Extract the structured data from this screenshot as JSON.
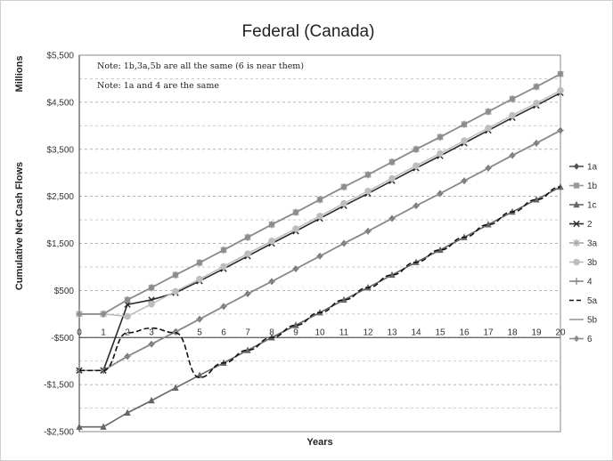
{
  "chart_data": {
    "type": "line",
    "title": "Federal (Canada)",
    "xlabel": "Years",
    "ylabel": "Cumulative Net Cash Flows",
    "units_label": "Millions",
    "notes": [
      "Note: 1b,3a,5b are all the same (6 is near them)",
      "Note: 1a and 4 are the same"
    ],
    "x": [
      0,
      1,
      2,
      3,
      4,
      5,
      6,
      7,
      8,
      9,
      10,
      11,
      12,
      13,
      14,
      15,
      16,
      17,
      18,
      19,
      20
    ],
    "ylim": [
      -2500,
      5500
    ],
    "yticks": [
      -2500,
      -1500,
      -500,
      500,
      1500,
      2500,
      3500,
      4500,
      5500
    ],
    "ytick_labels": [
      "-$2,500",
      "-$1,500",
      "-$500",
      "$500",
      "$1,500",
      "$2,500",
      "$3,500",
      "$4,500",
      "$5,500"
    ],
    "xtick_labels": [
      "0",
      "1",
      "2",
      "3",
      "4",
      "5",
      "6",
      "7",
      "8",
      "9",
      "10",
      "11",
      "12",
      "13",
      "14",
      "15",
      "16",
      "17",
      "18",
      "19",
      "20"
    ],
    "grid": true,
    "legend_position": "right",
    "series": [
      {
        "name": "1a",
        "color": "#555555",
        "marker": "diamond",
        "dash": "solid",
        "values": [
          -1200,
          -1200,
          -900,
          -640,
          -380,
          -110,
          160,
          430,
          690,
          960,
          1230,
          1500,
          1760,
          2030,
          2300,
          2560,
          2830,
          3100,
          3370,
          3630,
          3900
        ]
      },
      {
        "name": "1b",
        "color": "#9a9a9a",
        "marker": "square",
        "dash": "solid",
        "values": [
          0,
          0,
          300,
          560,
          830,
          1090,
          1360,
          1630,
          1900,
          2160,
          2430,
          2700,
          2960,
          3230,
          3500,
          3760,
          4030,
          4300,
          4570,
          4830,
          5100
        ]
      },
      {
        "name": "1c",
        "color": "#666666",
        "marker": "triangle",
        "dash": "solid",
        "values": [
          -2400,
          -2400,
          -2100,
          -1840,
          -1570,
          -1300,
          -1040,
          -770,
          -500,
          -240,
          30,
          300,
          560,
          830,
          1100,
          1360,
          1630,
          1900,
          2170,
          2430,
          2700
        ]
      },
      {
        "name": "2",
        "color": "#2a2a2a",
        "marker": "x",
        "dash": "solid",
        "values": [
          -1200,
          -1200,
          200,
          300,
          450,
          700,
          960,
          1230,
          1500,
          1760,
          2030,
          2300,
          2560,
          2830,
          3100,
          3360,
          3630,
          3900,
          4170,
          4430,
          4700
        ]
      },
      {
        "name": "3a",
        "color": "#a8a8a8",
        "marker": "star",
        "dash": "solid",
        "values": [
          0,
          0,
          300,
          560,
          830,
          1090,
          1360,
          1630,
          1900,
          2160,
          2430,
          2700,
          2960,
          3230,
          3500,
          3760,
          4030,
          4300,
          4570,
          4830,
          5100
        ]
      },
      {
        "name": "3b",
        "color": "#bdbdbd",
        "marker": "circle",
        "dash": "solid",
        "values": [
          0,
          0,
          -50,
          210,
          480,
          740,
          1010,
          1280,
          1550,
          1810,
          2080,
          2350,
          2610,
          2880,
          3150,
          3410,
          3680,
          3950,
          4220,
          4480,
          4750
        ]
      },
      {
        "name": "4",
        "color": "#8a8a8a",
        "marker": "plus",
        "dash": "solid",
        "values": [
          -1200,
          -1200,
          -900,
          -640,
          -380,
          -110,
          160,
          430,
          690,
          960,
          1230,
          1500,
          1760,
          2030,
          2300,
          2560,
          2830,
          3100,
          3370,
          3630,
          3900
        ]
      },
      {
        "name": "5a",
        "color": "#111111",
        "marker": "none",
        "dash": "dashed",
        "values": [
          -1200,
          -1200,
          -400,
          -300,
          -400,
          -1350,
          -1040,
          -770,
          -500,
          -240,
          30,
          300,
          560,
          830,
          1100,
          1360,
          1630,
          1900,
          2170,
          2430,
          2700
        ]
      },
      {
        "name": "5b",
        "color": "#999999",
        "marker": "none",
        "dash": "solid",
        "values": [
          0,
          0,
          300,
          560,
          830,
          1090,
          1360,
          1630,
          1900,
          2160,
          2430,
          2700,
          2960,
          3230,
          3500,
          3760,
          4030,
          4300,
          4570,
          4830,
          5100
        ]
      },
      {
        "name": "6",
        "color": "#8c8c8c",
        "marker": "diamond",
        "dash": "solid",
        "values": [
          0,
          0,
          300,
          560,
          830,
          1090,
          1360,
          1630,
          1900,
          2160,
          2430,
          2700,
          2960,
          3230,
          3500,
          3760,
          4030,
          4300,
          4570,
          4830,
          5100
        ]
      }
    ]
  }
}
